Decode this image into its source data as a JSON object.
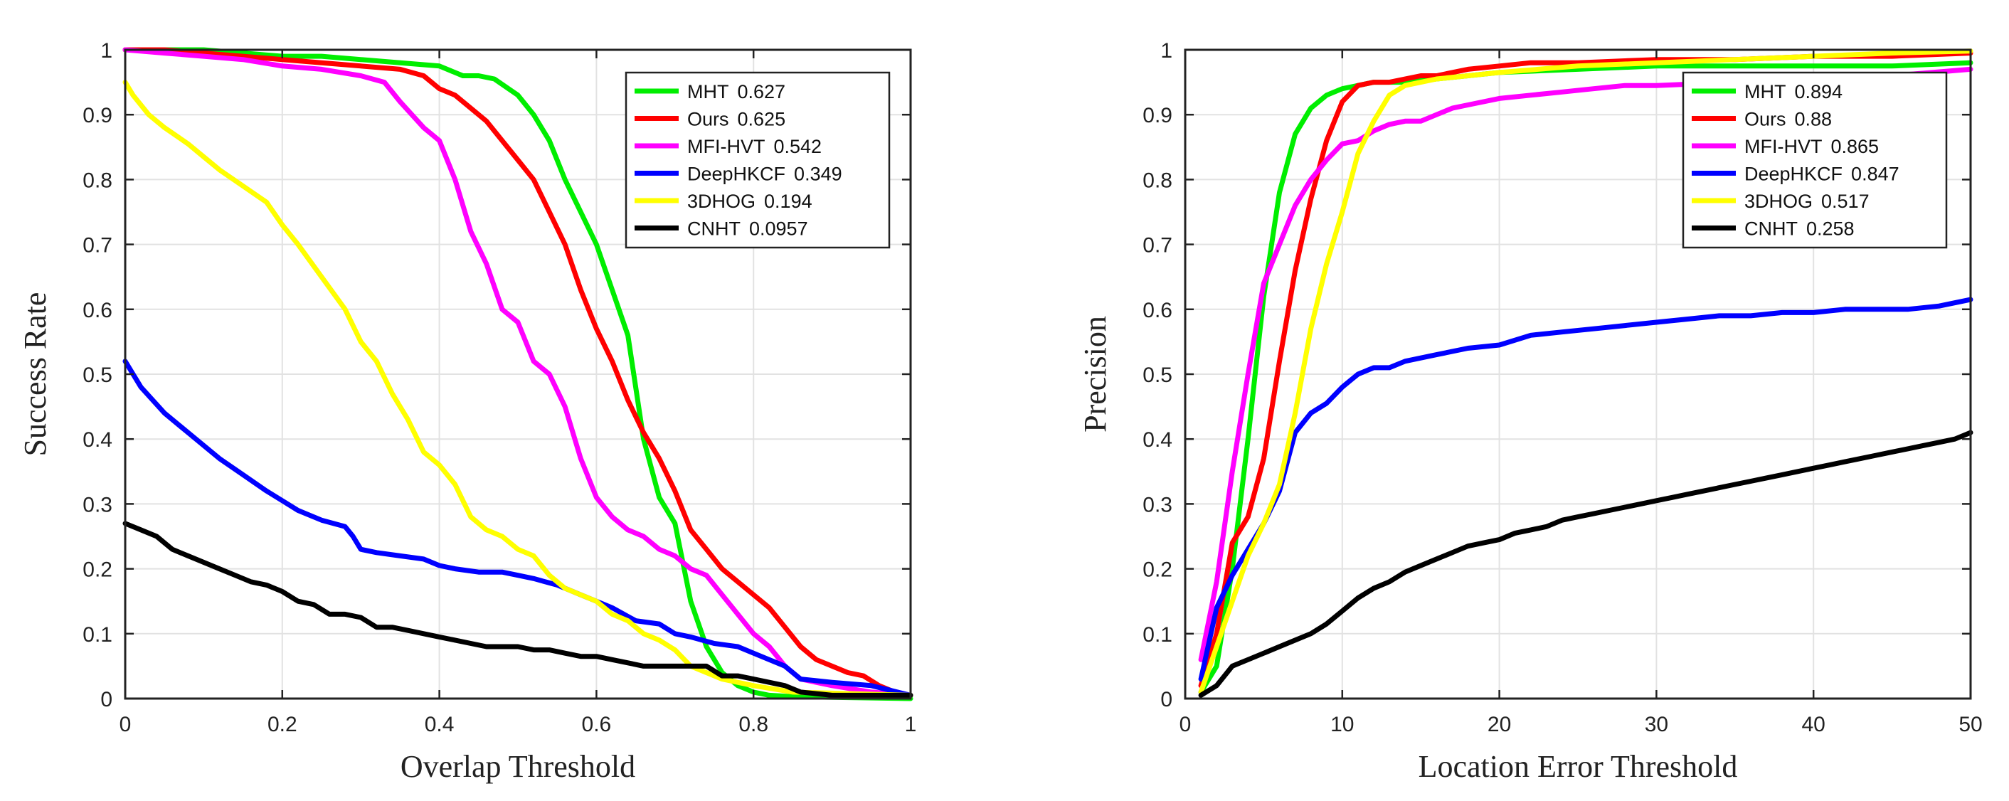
{
  "chart_data": [
    {
      "type": "line",
      "xlabel": "Overlap Threshold",
      "ylabel": "Success Rate",
      "xlim": [
        0,
        1
      ],
      "ylim": [
        0,
        1
      ],
      "xticks": [
        "0",
        "0.2",
        "0.4",
        "0.6",
        "0.8",
        "1"
      ],
      "yticks": [
        "0",
        "0.1",
        "0.2",
        "0.3",
        "0.4",
        "0.5",
        "0.6",
        "0.7",
        "0.8",
        "0.9",
        "1"
      ],
      "grid": true,
      "legend_position": "top-right",
      "series": [
        {
          "name": "MHT",
          "score": "0.627",
          "color": "#00ee00",
          "x": [
            0,
            0.05,
            0.1,
            0.15,
            0.2,
            0.25,
            0.3,
            0.35,
            0.4,
            0.43,
            0.45,
            0.47,
            0.5,
            0.52,
            0.54,
            0.56,
            0.58,
            0.6,
            0.62,
            0.64,
            0.66,
            0.68,
            0.7,
            0.72,
            0.74,
            0.76,
            0.78,
            0.8,
            0.82,
            0.85,
            0.9,
            1
          ],
          "y": [
            1,
            1,
            1,
            0.995,
            0.99,
            0.99,
            0.985,
            0.98,
            0.975,
            0.96,
            0.96,
            0.955,
            0.93,
            0.9,
            0.86,
            0.8,
            0.75,
            0.7,
            0.63,
            0.56,
            0.4,
            0.31,
            0.27,
            0.15,
            0.08,
            0.04,
            0.02,
            0.01,
            0.005,
            0.003,
            0.002,
            0
          ]
        },
        {
          "name": "Ours",
          "score": "0.625",
          "color": "#ff0000",
          "x": [
            0,
            0.05,
            0.1,
            0.15,
            0.2,
            0.25,
            0.3,
            0.35,
            0.38,
            0.4,
            0.42,
            0.44,
            0.46,
            0.48,
            0.5,
            0.52,
            0.54,
            0.56,
            0.58,
            0.6,
            0.62,
            0.64,
            0.66,
            0.68,
            0.7,
            0.72,
            0.74,
            0.76,
            0.78,
            0.8,
            0.82,
            0.84,
            0.86,
            0.88,
            0.9,
            0.92,
            0.94,
            0.96,
            0.98,
            1
          ],
          "y": [
            1,
            1,
            0.995,
            0.99,
            0.985,
            0.98,
            0.975,
            0.97,
            0.96,
            0.94,
            0.93,
            0.91,
            0.89,
            0.86,
            0.83,
            0.8,
            0.75,
            0.7,
            0.63,
            0.57,
            0.52,
            0.46,
            0.41,
            0.37,
            0.32,
            0.26,
            0.23,
            0.2,
            0.18,
            0.16,
            0.14,
            0.11,
            0.08,
            0.06,
            0.05,
            0.04,
            0.035,
            0.02,
            0.01,
            0.005
          ]
        },
        {
          "name": "MFI-HVT",
          "score": "0.542",
          "color": "#ff00ff",
          "x": [
            0,
            0.05,
            0.1,
            0.15,
            0.2,
            0.25,
            0.3,
            0.33,
            0.35,
            0.38,
            0.4,
            0.42,
            0.44,
            0.46,
            0.48,
            0.5,
            0.52,
            0.54,
            0.56,
            0.58,
            0.6,
            0.62,
            0.64,
            0.66,
            0.68,
            0.7,
            0.72,
            0.74,
            0.76,
            0.78,
            0.8,
            0.82,
            0.84,
            0.86,
            0.9,
            0.95,
            1
          ],
          "y": [
            1,
            0.995,
            0.99,
            0.985,
            0.975,
            0.97,
            0.96,
            0.95,
            0.92,
            0.88,
            0.86,
            0.8,
            0.72,
            0.67,
            0.6,
            0.58,
            0.52,
            0.5,
            0.45,
            0.37,
            0.31,
            0.28,
            0.26,
            0.25,
            0.23,
            0.22,
            0.2,
            0.19,
            0.16,
            0.13,
            0.1,
            0.08,
            0.05,
            0.03,
            0.02,
            0.01,
            0.005
          ]
        },
        {
          "name": "DeepHKCF",
          "score": "0.349",
          "color": "#0000ff",
          "x": [
            0,
            0.02,
            0.05,
            0.08,
            0.1,
            0.12,
            0.15,
            0.18,
            0.2,
            0.22,
            0.25,
            0.28,
            0.29,
            0.3,
            0.32,
            0.35,
            0.38,
            0.4,
            0.42,
            0.45,
            0.48,
            0.5,
            0.52,
            0.55,
            0.58,
            0.6,
            0.62,
            0.65,
            0.68,
            0.7,
            0.72,
            0.75,
            0.78,
            0.8,
            0.82,
            0.84,
            0.86,
            0.9,
            0.95,
            1
          ],
          "y": [
            0.52,
            0.48,
            0.44,
            0.41,
            0.39,
            0.37,
            0.345,
            0.32,
            0.305,
            0.29,
            0.275,
            0.265,
            0.25,
            0.23,
            0.225,
            0.22,
            0.215,
            0.205,
            0.2,
            0.195,
            0.195,
            0.19,
            0.185,
            0.175,
            0.16,
            0.15,
            0.14,
            0.12,
            0.115,
            0.1,
            0.095,
            0.085,
            0.08,
            0.07,
            0.06,
            0.05,
            0.03,
            0.025,
            0.02,
            0.005
          ]
        },
        {
          "name": "3DHOG",
          "score": "0.194",
          "color": "#ffff00",
          "x": [
            0,
            0.01,
            0.03,
            0.05,
            0.08,
            0.1,
            0.12,
            0.15,
            0.18,
            0.2,
            0.22,
            0.25,
            0.28,
            0.3,
            0.32,
            0.34,
            0.36,
            0.38,
            0.4,
            0.42,
            0.44,
            0.46,
            0.48,
            0.5,
            0.52,
            0.54,
            0.56,
            0.58,
            0.6,
            0.62,
            0.64,
            0.66,
            0.68,
            0.7,
            0.72,
            0.74,
            0.76,
            0.8,
            0.85,
            1
          ],
          "y": [
            0.95,
            0.93,
            0.9,
            0.88,
            0.855,
            0.835,
            0.815,
            0.79,
            0.765,
            0.73,
            0.7,
            0.65,
            0.6,
            0.55,
            0.52,
            0.47,
            0.43,
            0.38,
            0.36,
            0.33,
            0.28,
            0.26,
            0.25,
            0.23,
            0.22,
            0.19,
            0.17,
            0.16,
            0.15,
            0.13,
            0.12,
            0.1,
            0.09,
            0.075,
            0.05,
            0.04,
            0.03,
            0.02,
            0.01,
            0.005
          ]
        },
        {
          "name": "CNHT",
          "score": "0.0957",
          "color": "#000000",
          "x": [
            0,
            0.02,
            0.04,
            0.06,
            0.08,
            0.1,
            0.12,
            0.14,
            0.16,
            0.18,
            0.2,
            0.22,
            0.24,
            0.26,
            0.28,
            0.3,
            0.32,
            0.34,
            0.36,
            0.38,
            0.4,
            0.42,
            0.44,
            0.46,
            0.48,
            0.5,
            0.52,
            0.54,
            0.56,
            0.58,
            0.6,
            0.62,
            0.64,
            0.66,
            0.68,
            0.7,
            0.72,
            0.74,
            0.76,
            0.78,
            0.8,
            0.82,
            0.84,
            0.86,
            0.9,
            1
          ],
          "y": [
            0.27,
            0.26,
            0.25,
            0.23,
            0.22,
            0.21,
            0.2,
            0.19,
            0.18,
            0.175,
            0.165,
            0.15,
            0.145,
            0.13,
            0.13,
            0.125,
            0.11,
            0.11,
            0.105,
            0.1,
            0.095,
            0.09,
            0.085,
            0.08,
            0.08,
            0.08,
            0.075,
            0.075,
            0.07,
            0.065,
            0.065,
            0.06,
            0.055,
            0.05,
            0.05,
            0.05,
            0.05,
            0.05,
            0.035,
            0.035,
            0.03,
            0.025,
            0.02,
            0.01,
            0.005,
            0.005
          ]
        }
      ]
    },
    {
      "type": "line",
      "xlabel": "Location Error Threshold",
      "ylabel": "Precision",
      "xlim": [
        0,
        50
      ],
      "ylim": [
        0,
        1
      ],
      "xticks": [
        "0",
        "10",
        "20",
        "30",
        "40",
        "50"
      ],
      "yticks": [
        "0",
        "0.1",
        "0.2",
        "0.3",
        "0.4",
        "0.5",
        "0.6",
        "0.7",
        "0.8",
        "0.9",
        "1"
      ],
      "grid": true,
      "legend_position": "top-right",
      "series": [
        {
          "name": "MHT",
          "score": "0.894",
          "color": "#00ee00",
          "x": [
            1,
            2,
            3,
            4,
            5,
            6,
            7,
            8,
            9,
            10,
            11,
            12,
            14,
            16,
            18,
            20,
            25,
            30,
            35,
            40,
            45,
            50
          ],
          "y": [
            0.01,
            0.05,
            0.2,
            0.4,
            0.62,
            0.78,
            0.87,
            0.91,
            0.93,
            0.94,
            0.945,
            0.95,
            0.95,
            0.955,
            0.96,
            0.965,
            0.97,
            0.975,
            0.975,
            0.975,
            0.975,
            0.98
          ]
        },
        {
          "name": "Ours",
          "score": "0.88",
          "color": "#ff0000",
          "x": [
            1,
            2,
            3,
            4,
            5,
            6,
            7,
            8,
            9,
            10,
            11,
            12,
            13,
            14,
            15,
            16,
            18,
            20,
            22,
            25,
            30,
            35,
            40,
            45,
            50
          ],
          "y": [
            0.02,
            0.1,
            0.24,
            0.28,
            0.37,
            0.52,
            0.66,
            0.77,
            0.86,
            0.92,
            0.945,
            0.95,
            0.95,
            0.955,
            0.96,
            0.96,
            0.97,
            0.975,
            0.98,
            0.98,
            0.985,
            0.985,
            0.99,
            0.99,
            0.995
          ]
        },
        {
          "name": "MFI-HVT",
          "score": "0.865",
          "color": "#ff00ff",
          "x": [
            1,
            2,
            3,
            4,
            5,
            6,
            7,
            8,
            9,
            10,
            11,
            12,
            13,
            14,
            15,
            16,
            17,
            18,
            20,
            22,
            24,
            26,
            28,
            30,
            35,
            40,
            45,
            50
          ],
          "y": [
            0.06,
            0.18,
            0.35,
            0.5,
            0.64,
            0.7,
            0.76,
            0.8,
            0.83,
            0.855,
            0.86,
            0.875,
            0.885,
            0.89,
            0.89,
            0.9,
            0.91,
            0.915,
            0.925,
            0.93,
            0.935,
            0.94,
            0.945,
            0.945,
            0.95,
            0.955,
            0.96,
            0.97
          ]
        },
        {
          "name": "DeepHKCF",
          "score": "0.847",
          "color": "#0000ff",
          "x": [
            1,
            2,
            3,
            4,
            5,
            6,
            7,
            8,
            9,
            10,
            11,
            12,
            13,
            14,
            15,
            16,
            18,
            20,
            22,
            24,
            26,
            28,
            30,
            32,
            34,
            36,
            38,
            40,
            42,
            44,
            46,
            48,
            50
          ],
          "y": [
            0.03,
            0.14,
            0.19,
            0.23,
            0.27,
            0.32,
            0.41,
            0.44,
            0.455,
            0.48,
            0.5,
            0.51,
            0.51,
            0.52,
            0.525,
            0.53,
            0.54,
            0.545,
            0.56,
            0.565,
            0.57,
            0.575,
            0.58,
            0.585,
            0.59,
            0.59,
            0.595,
            0.595,
            0.6,
            0.6,
            0.6,
            0.605,
            0.615
          ]
        },
        {
          "name": "3DHOG",
          "score": "0.517",
          "color": "#ffff00",
          "x": [
            1,
            2,
            3,
            4,
            5,
            6,
            7,
            8,
            9,
            10,
            11,
            12,
            13,
            14,
            15,
            16,
            18,
            20,
            25,
            30,
            35,
            40,
            45,
            50
          ],
          "y": [
            0.01,
            0.08,
            0.15,
            0.22,
            0.27,
            0.33,
            0.44,
            0.57,
            0.67,
            0.75,
            0.84,
            0.89,
            0.93,
            0.945,
            0.95,
            0.955,
            0.96,
            0.965,
            0.975,
            0.98,
            0.985,
            0.99,
            0.995,
            0.998
          ]
        },
        {
          "name": "CNHT",
          "score": "0.258",
          "color": "#000000",
          "x": [
            1,
            2,
            3,
            4,
            5,
            6,
            7,
            8,
            9,
            10,
            11,
            12,
            13,
            14,
            15,
            16,
            17,
            18,
            19,
            20,
            21,
            22,
            23,
            24,
            25,
            26,
            27,
            28,
            29,
            30,
            31,
            32,
            33,
            34,
            35,
            36,
            37,
            38,
            39,
            40,
            41,
            42,
            43,
            44,
            45,
            46,
            47,
            48,
            49,
            50
          ],
          "y": [
            0.005,
            0.02,
            0.05,
            0.06,
            0.07,
            0.08,
            0.09,
            0.1,
            0.115,
            0.135,
            0.155,
            0.17,
            0.18,
            0.195,
            0.205,
            0.215,
            0.225,
            0.235,
            0.24,
            0.245,
            0.255,
            0.26,
            0.265,
            0.275,
            0.28,
            0.285,
            0.29,
            0.295,
            0.3,
            0.305,
            0.31,
            0.315,
            0.32,
            0.325,
            0.33,
            0.335,
            0.34,
            0.345,
            0.35,
            0.355,
            0.36,
            0.365,
            0.37,
            0.375,
            0.38,
            0.385,
            0.39,
            0.395,
            0.4,
            0.41
          ]
        }
      ]
    }
  ]
}
